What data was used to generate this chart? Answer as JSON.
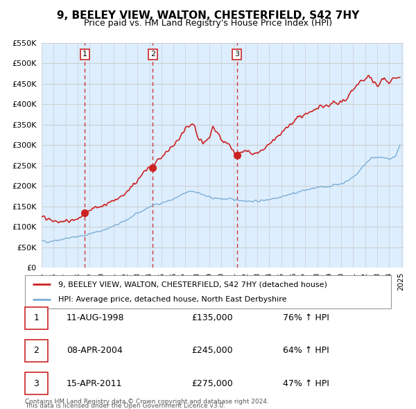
{
  "title": "9, BEELEY VIEW, WALTON, CHESTERFIELD, S42 7HY",
  "subtitle": "Price paid vs. HM Land Registry's House Price Index (HPI)",
  "legend_property": "9, BEELEY VIEW, WALTON, CHESTERFIELD, S42 7HY (detached house)",
  "legend_hpi": "HPI: Average price, detached house, North East Derbyshire",
  "footer1": "Contains HM Land Registry data © Crown copyright and database right 2024.",
  "footer2": "This data is licensed under the Open Government Licence v3.0.",
  "sales": [
    {
      "num": 1,
      "date": "11-AUG-1998",
      "price": 135000,
      "pct": "76%",
      "dir": "↑"
    },
    {
      "num": 2,
      "date": "08-APR-2004",
      "price": 245000,
      "pct": "64%",
      "dir": "↑"
    },
    {
      "num": 3,
      "date": "15-APR-2011",
      "price": 275000,
      "pct": "47%",
      "dir": "↑"
    }
  ],
  "sale_years": [
    1998.6,
    2004.27,
    2011.29
  ],
  "sale_prices": [
    135000,
    245000,
    275000
  ],
  "vline_years": [
    1998.6,
    2004.27,
    2011.29
  ],
  "ylim": [
    0,
    550000
  ],
  "yticks": [
    0,
    50000,
    100000,
    150000,
    200000,
    250000,
    300000,
    350000,
    400000,
    450000,
    500000,
    550000
  ],
  "property_color": "#cc2222",
  "hpi_color": "#7aadd4",
  "vline_color": "#cc2222",
  "grid_color": "#cccccc",
  "plot_bg": "#ddeeff",
  "background_color": "#ffffff",
  "hpi_anchors_x": [
    1995.0,
    1995.5,
    1996.0,
    1996.5,
    1997.0,
    1997.5,
    1998.0,
    1998.5,
    1999.0,
    1999.5,
    2000.0,
    2000.5,
    2001.0,
    2001.5,
    2002.0,
    2002.5,
    2003.0,
    2003.5,
    2004.0,
    2004.5,
    2005.0,
    2005.5,
    2006.0,
    2006.5,
    2007.0,
    2007.5,
    2008.0,
    2008.5,
    2009.0,
    2009.5,
    2010.0,
    2010.5,
    2011.0,
    2011.5,
    2012.0,
    2012.5,
    2013.0,
    2013.5,
    2014.0,
    2014.5,
    2015.0,
    2015.5,
    2016.0,
    2016.5,
    2017.0,
    2017.5,
    2018.0,
    2018.5,
    2019.0,
    2019.5,
    2020.0,
    2020.5,
    2021.0,
    2021.5,
    2022.0,
    2022.5,
    2023.0,
    2023.5,
    2024.0,
    2024.5,
    2024.9
  ],
  "hpi_anchors_y": [
    65000,
    64000,
    67000,
    69000,
    72000,
    74000,
    77000,
    79000,
    83000,
    87000,
    91000,
    96000,
    102000,
    108000,
    116000,
    124000,
    133000,
    141000,
    149000,
    155000,
    159000,
    163000,
    168000,
    175000,
    183000,
    188000,
    185000,
    178000,
    172000,
    170000,
    169000,
    168000,
    167000,
    166000,
    164000,
    163000,
    163000,
    165000,
    168000,
    171000,
    175000,
    178000,
    182000,
    186000,
    190000,
    193000,
    196000,
    198000,
    200000,
    203000,
    206000,
    212000,
    222000,
    236000,
    255000,
    268000,
    272000,
    268000,
    266000,
    271000,
    300000
  ],
  "prop_anchors_x": [
    1995.0,
    1995.5,
    1996.0,
    1996.5,
    1997.0,
    1997.5,
    1998.0,
    1998.4,
    1998.6,
    1999.0,
    1999.5,
    2000.0,
    2000.5,
    2001.0,
    2001.5,
    2002.0,
    2002.5,
    2003.0,
    2003.5,
    2004.0,
    2004.27,
    2004.5,
    2005.0,
    2005.5,
    2006.0,
    2006.5,
    2007.0,
    2007.5,
    2007.8,
    2008.0,
    2008.5,
    2009.0,
    2009.3,
    2009.5,
    2009.8,
    2010.0,
    2010.5,
    2011.0,
    2011.29,
    2011.5,
    2012.0,
    2012.5,
    2013.0,
    2013.5,
    2014.0,
    2014.5,
    2015.0,
    2015.5,
    2016.0,
    2016.5,
    2017.0,
    2017.5,
    2018.0,
    2018.5,
    2019.0,
    2019.5,
    2020.0,
    2020.5,
    2021.0,
    2021.3,
    2021.6,
    2022.0,
    2022.3,
    2022.6,
    2023.0,
    2023.3,
    2023.6,
    2024.0,
    2024.3,
    2024.6,
    2024.9
  ],
  "prop_anchors_y": [
    125000,
    118000,
    115000,
    112000,
    114000,
    116000,
    120000,
    128000,
    135000,
    143000,
    148000,
    152000,
    158000,
    165000,
    172000,
    182000,
    198000,
    215000,
    235000,
    248000,
    245000,
    258000,
    270000,
    285000,
    298000,
    315000,
    340000,
    352000,
    345000,
    320000,
    305000,
    320000,
    348000,
    335000,
    325000,
    310000,
    305000,
    285000,
    275000,
    282000,
    290000,
    278000,
    280000,
    292000,
    305000,
    318000,
    330000,
    345000,
    358000,
    368000,
    375000,
    382000,
    390000,
    395000,
    398000,
    402000,
    405000,
    415000,
    435000,
    448000,
    458000,
    460000,
    470000,
    455000,
    445000,
    455000,
    462000,
    450000,
    460000,
    465000,
    470000
  ]
}
